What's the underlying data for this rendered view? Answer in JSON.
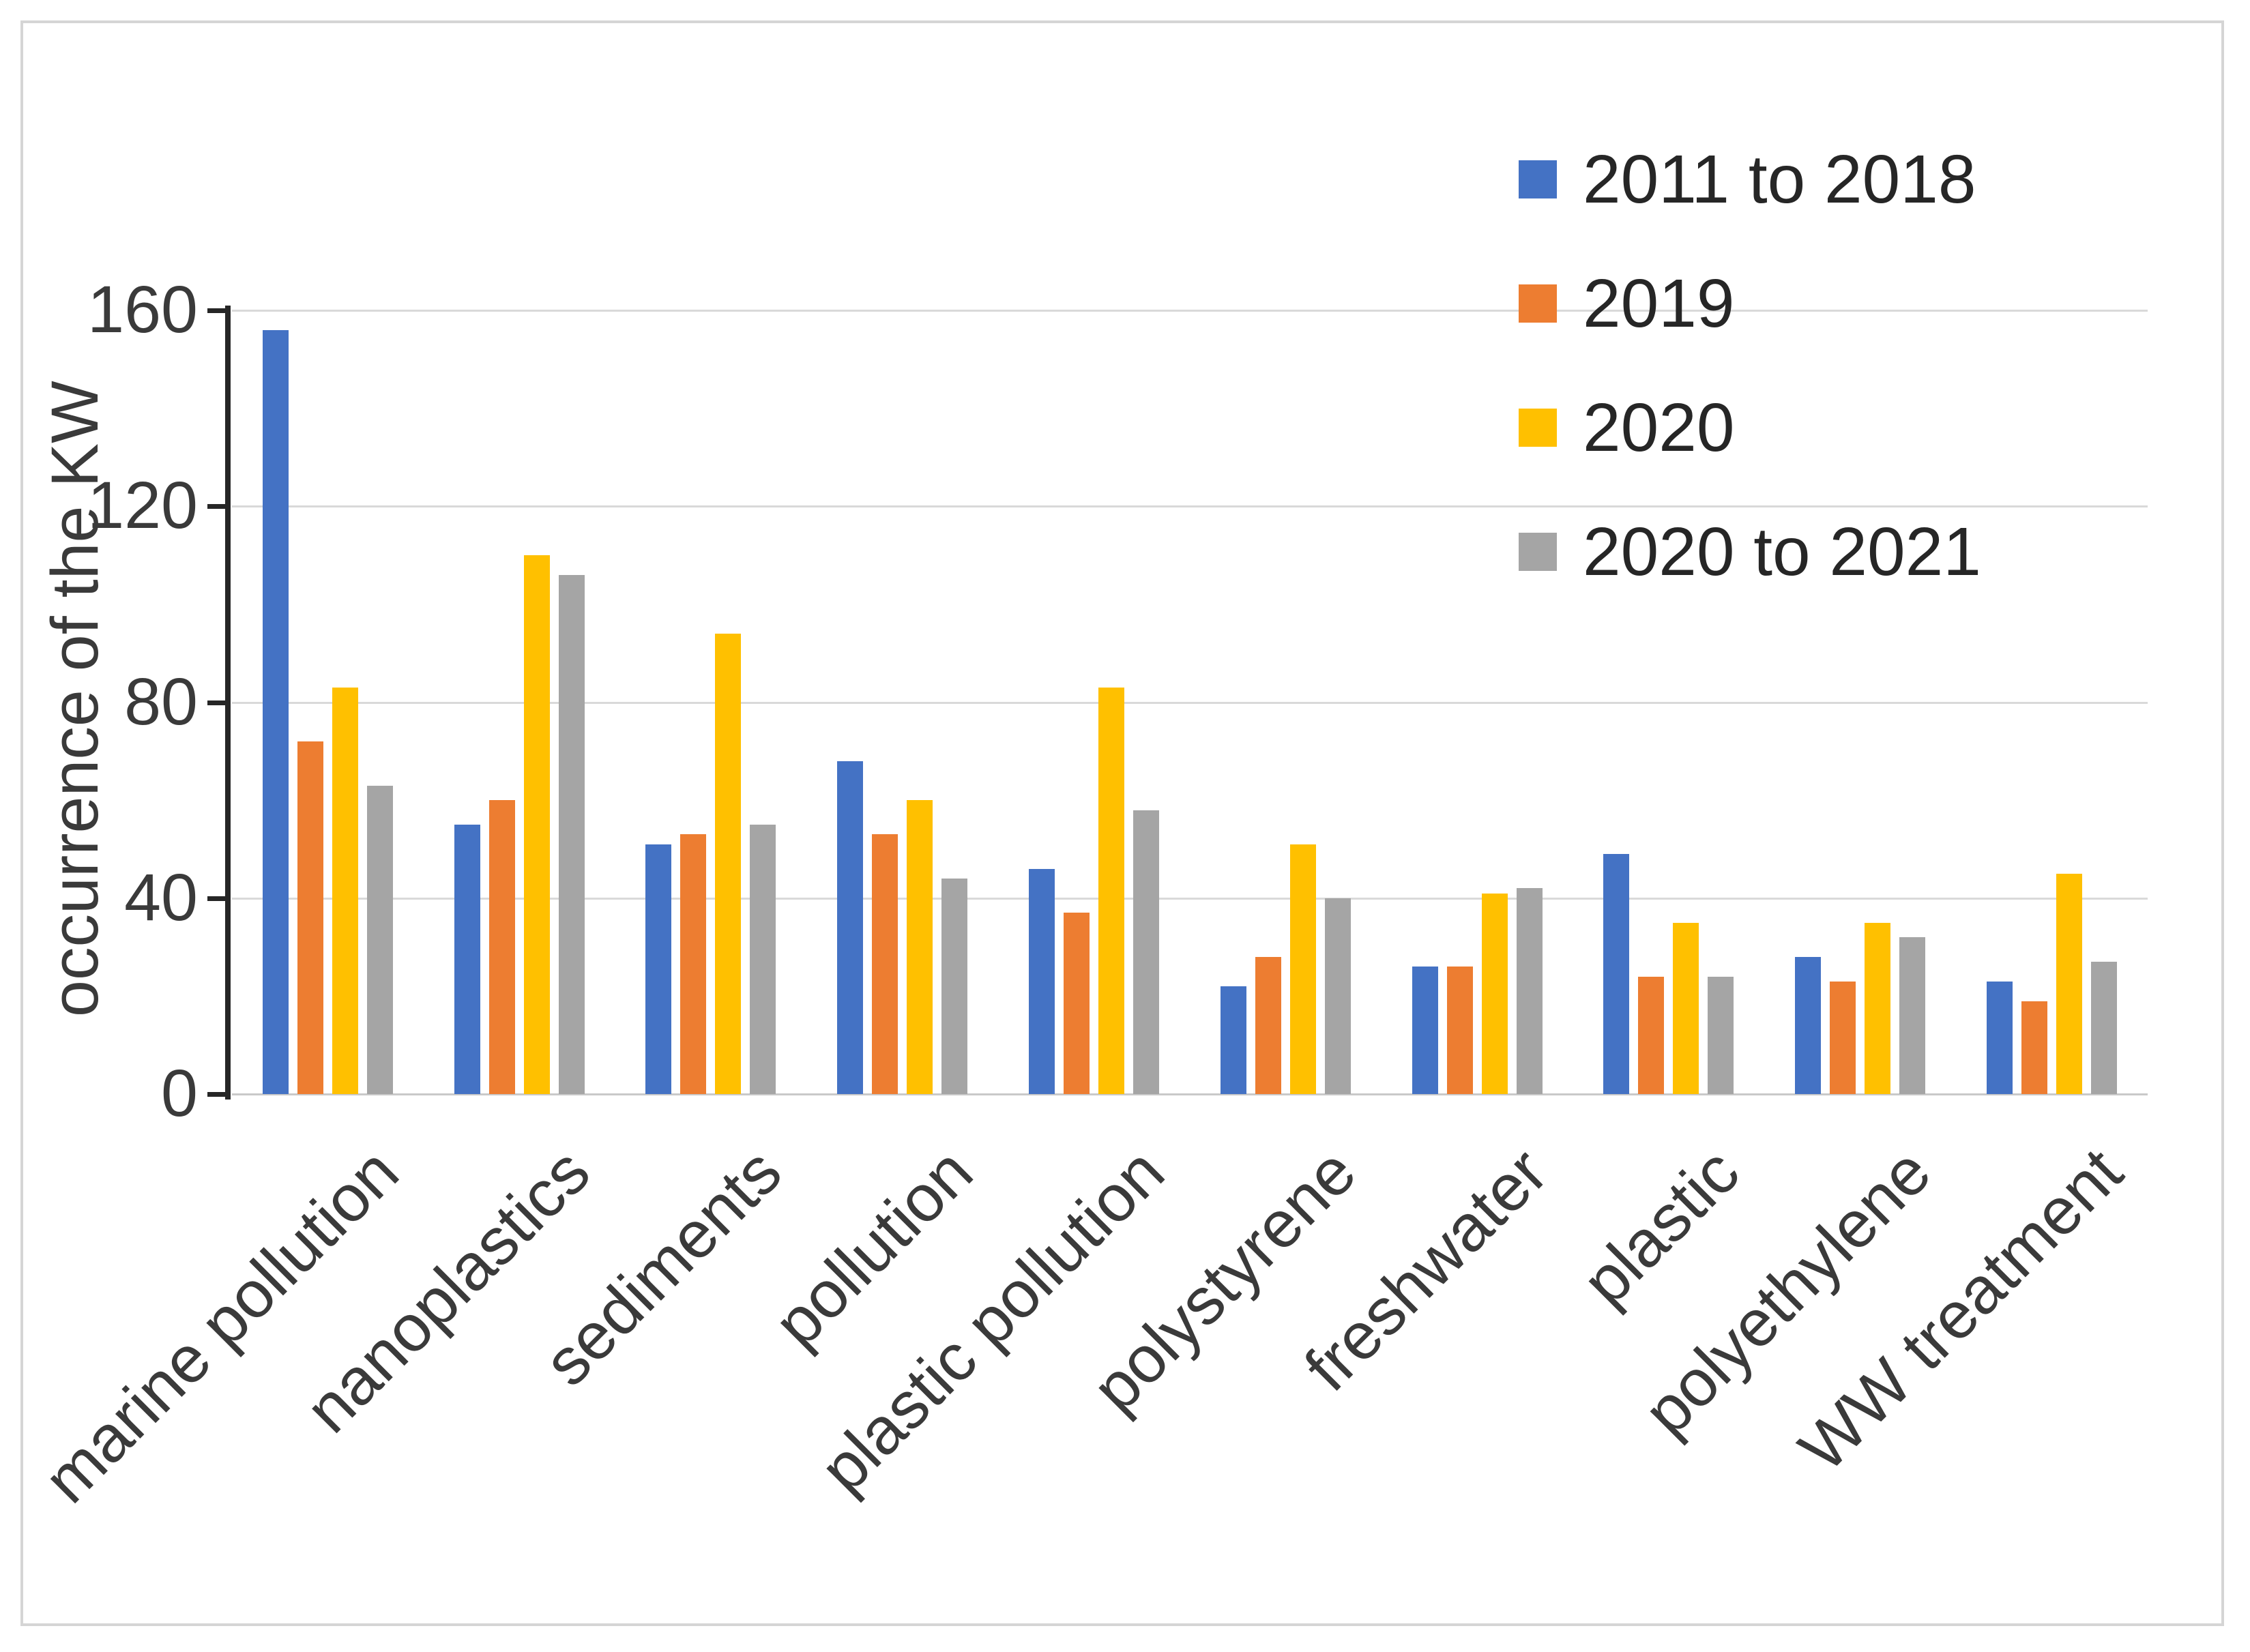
{
  "figure": {
    "y_axis": {
      "title": "occurrence of the KW",
      "tick_labels": [
        "0",
        "40",
        "80",
        "120",
        "160"
      ],
      "max": 160
    },
    "colors": {
      "series_blue": "#4472C4",
      "series_orange": "#ED7D31",
      "series_yellow": "#FFC000",
      "series_gray": "#A5A5A5",
      "gridline": "#d9d9d9",
      "axis": "#262626"
    }
  },
  "chart_data": {
    "type": "bar",
    "title": "",
    "xlabel": "",
    "ylabel": "occurrence of the KW",
    "ylim": [
      0,
      160
    ],
    "yticks": [
      0,
      40,
      80,
      120,
      160
    ],
    "grid": true,
    "legend_position": "top-right",
    "categories": [
      "marine pollution",
      "nanoplastics",
      "sediments",
      "pollution",
      "plastic pollution",
      "polystyrene",
      "freshwater",
      "plastic",
      "polyethylene",
      "WW treatment"
    ],
    "series": [
      {
        "name": "2011 to 2018",
        "color": "#4472C4",
        "values": [
          156,
          55,
          51,
          68,
          46,
          22,
          26,
          49,
          28,
          23
        ]
      },
      {
        "name": "2019",
        "color": "#ED7D31",
        "values": [
          72,
          60,
          53,
          53,
          37,
          28,
          26,
          24,
          23,
          19
        ]
      },
      {
        "name": "2020",
        "color": "#FFC000",
        "values": [
          83,
          110,
          94,
          60,
          83,
          51,
          41,
          35,
          35,
          45
        ]
      },
      {
        "name": "2020 to 2021",
        "color": "#A5A5A5",
        "values": [
          63,
          106,
          55,
          44,
          58,
          40,
          42,
          24,
          32,
          27
        ]
      }
    ]
  }
}
